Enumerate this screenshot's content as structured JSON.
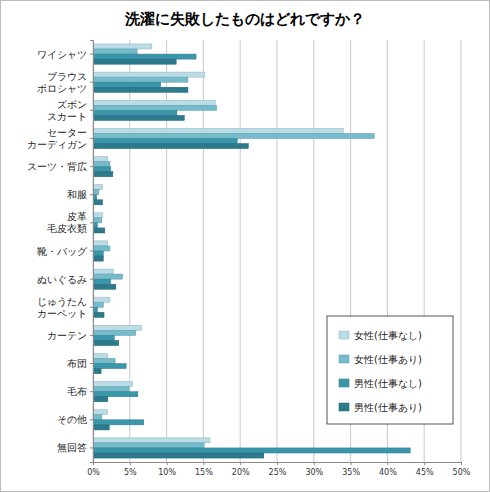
{
  "chart_data": {
    "type": "bar",
    "orientation": "horizontal",
    "title": "洗濯に失敗したものはどれですか？",
    "categories": [
      "ワイシャツ",
      "ブラウス\nポロシャツ",
      "ズボン\nスカート",
      "セーター\nカーディガン",
      "スーツ・背広",
      "和服",
      "皮革\n毛皮衣類",
      "靴・バッグ",
      "ぬいぐるみ",
      "じゅうたん\nカーペット",
      "カーテン",
      "布団",
      "毛布",
      "その他",
      "無回答"
    ],
    "series": [
      {
        "name": "女性(仕事なし)",
        "color": "#b9dce6",
        "values": [
          8.0,
          15.2,
          16.6,
          34.0,
          2.0,
          1.3,
          1.3,
          2.0,
          2.8,
          2.3,
          6.6,
          2.0,
          5.4,
          2.0,
          15.9
        ]
      },
      {
        "name": "女性(仕事あり)",
        "color": "#74bccc",
        "values": [
          6.0,
          12.9,
          16.8,
          38.2,
          2.3,
          0.8,
          1.2,
          2.3,
          4.0,
          1.4,
          5.8,
          3.0,
          4.9,
          1.2,
          15.1
        ]
      },
      {
        "name": "男性(仕事なし)",
        "color": "#3a97ab",
        "values": [
          14.0,
          9.2,
          11.4,
          19.6,
          2.4,
          0.5,
          0.6,
          1.4,
          2.4,
          0.6,
          2.9,
          4.5,
          6.1,
          6.9,
          43.1
        ]
      },
      {
        "name": "男性(仕事あり)",
        "color": "#2b7b8c",
        "values": [
          11.3,
          12.9,
          12.4,
          21.1,
          2.7,
          1.3,
          1.6,
          1.4,
          3.1,
          1.5,
          3.5,
          1.1,
          2.0,
          2.2,
          23.2
        ]
      }
    ],
    "xlim": [
      0,
      50
    ],
    "xticks": [
      {
        "value": 0,
        "label": "0%"
      },
      {
        "value": 5,
        "label": "5%"
      },
      {
        "value": 10,
        "label": "10%"
      },
      {
        "value": 15,
        "label": "15%"
      },
      {
        "value": 20,
        "label": "20%"
      },
      {
        "value": 25,
        "label": "25%"
      },
      {
        "value": 30,
        "label": "30%"
      },
      {
        "value": 35,
        "label": "35%"
      },
      {
        "value": 40,
        "label": "40%"
      },
      {
        "value": 45,
        "label": "45%"
      },
      {
        "value": 50,
        "label": "50%"
      }
    ],
    "grid": true,
    "legend": "lower right"
  }
}
